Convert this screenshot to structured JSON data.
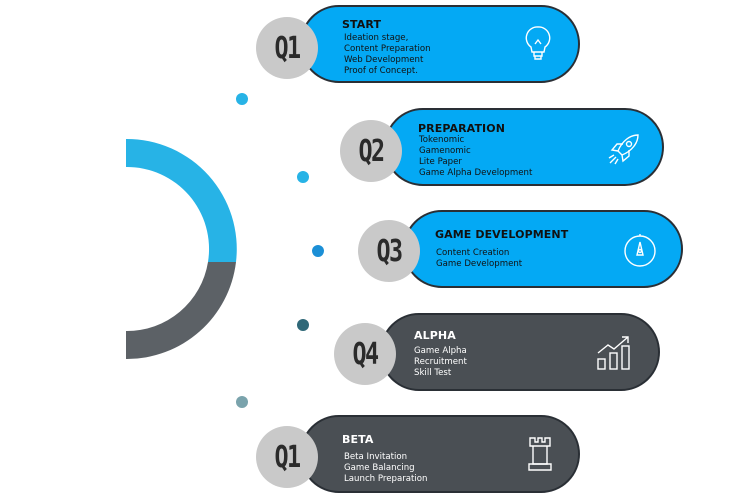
{
  "colors": {
    "blue": "#04a9f4",
    "dark": "#4a4f54",
    "arc_blue": "#27b3e6",
    "arc_gray": "#5c6166",
    "badge": "#c9c9c9"
  },
  "stages": [
    {
      "badge": "Q1",
      "title": "START",
      "lines": [
        "Ideation stage,",
        "Content Preparation",
        "Web Development",
        "Proof of Concept."
      ],
      "icon": "lightbulb-icon",
      "style": "blue"
    },
    {
      "badge": "Q2",
      "title": "PREPARATION",
      "lines": [
        "Tokenomic",
        "Gamenomic",
        "Lite Paper",
        "Game Alpha Development"
      ],
      "icon": "rocket-icon",
      "style": "blue"
    },
    {
      "badge": "Q3",
      "title": "GAME DEVELOPMENT",
      "lines": [
        "Content Creation",
        "Game Development"
      ],
      "icon": "compass-icon",
      "style": "blue"
    },
    {
      "badge": "Q4",
      "title": "ALPHA",
      "lines": [
        "Game Alpha",
        "Recruitment",
        "Skill Test"
      ],
      "icon": "growth-chart-icon",
      "style": "dark"
    },
    {
      "badge": "Q1",
      "title": "BETA",
      "lines": [
        "Beta Invitation",
        "Game Balancing",
        "Launch Preparation"
      ],
      "icon": "chess-rook-icon",
      "style": "dark"
    }
  ]
}
